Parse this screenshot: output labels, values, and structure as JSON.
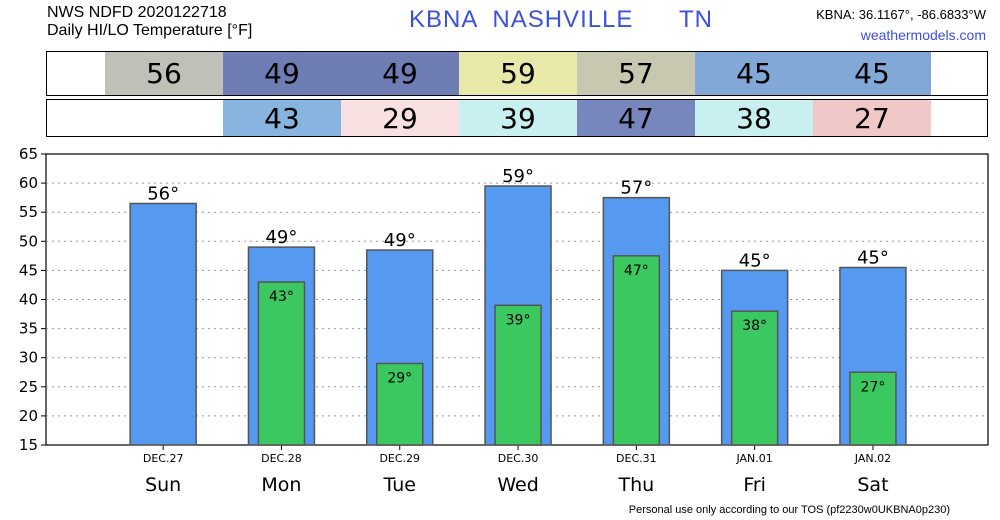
{
  "header": {
    "line1": "NWS NDFD 2020122718",
    "line2": "Daily HI/LO Temperature [°F]",
    "station": "KBNA",
    "city": "NASHVILLE",
    "state": "TN",
    "coords": "KBNA: 36.1167°, -86.6833°W",
    "site": "weathermodels.com"
  },
  "colors": {
    "hi_bar": "#5599f0",
    "lo_bar": "#3cc860"
  },
  "strips": {
    "hi": [
      {
        "text": "56",
        "color": "#c0c0b8"
      },
      {
        "text": "49",
        "color": "#6e7db4"
      },
      {
        "text": "49",
        "color": "#6e7db4"
      },
      {
        "text": "59",
        "color": "#e8e8a8"
      },
      {
        "text": "57",
        "color": "#c8c8b0"
      },
      {
        "text": "45",
        "color": "#82a8d8"
      },
      {
        "text": "45",
        "color": "#82a8d8"
      }
    ],
    "lo": [
      {
        "text": "",
        "color": "#ffffff"
      },
      {
        "text": "43",
        "color": "#88b4e0"
      },
      {
        "text": "29",
        "color": "#fae1e1"
      },
      {
        "text": "39",
        "color": "#c8f0f0"
      },
      {
        "text": "47",
        "color": "#7886be"
      },
      {
        "text": "38",
        "color": "#c8f0f0"
      },
      {
        "text": "27",
        "color": "#f0c8c8"
      }
    ]
  },
  "chart_data": {
    "type": "bar",
    "categories": [
      "Sun",
      "Mon",
      "Tue",
      "Wed",
      "Thu",
      "Fri",
      "Sat"
    ],
    "dates": [
      "DEC.27",
      "DEC.28",
      "DEC.29",
      "DEC.30",
      "DEC.31",
      "JAN.01",
      "JAN.02"
    ],
    "series": [
      {
        "values": [
          56.5,
          49,
          48.5,
          59.5,
          57.5,
          45,
          45.5
        ],
        "labels": [
          "56°",
          "49°",
          "49°",
          "59°",
          "57°",
          "45°",
          "45°"
        ]
      },
      {
        "values": [
          null,
          43,
          29,
          39,
          47.5,
          38,
          27.5
        ],
        "labels": [
          "",
          "43°",
          "29°",
          "39°",
          "47°",
          "38°",
          "27°"
        ]
      }
    ],
    "ylim": [
      15,
      65
    ],
    "yticks": [
      15,
      20,
      25,
      30,
      35,
      40,
      45,
      50,
      55,
      60,
      65
    ],
    "grid": true
  },
  "footer": "Personal use only according to our TOS (pf2230w0UKBNA0p230)"
}
